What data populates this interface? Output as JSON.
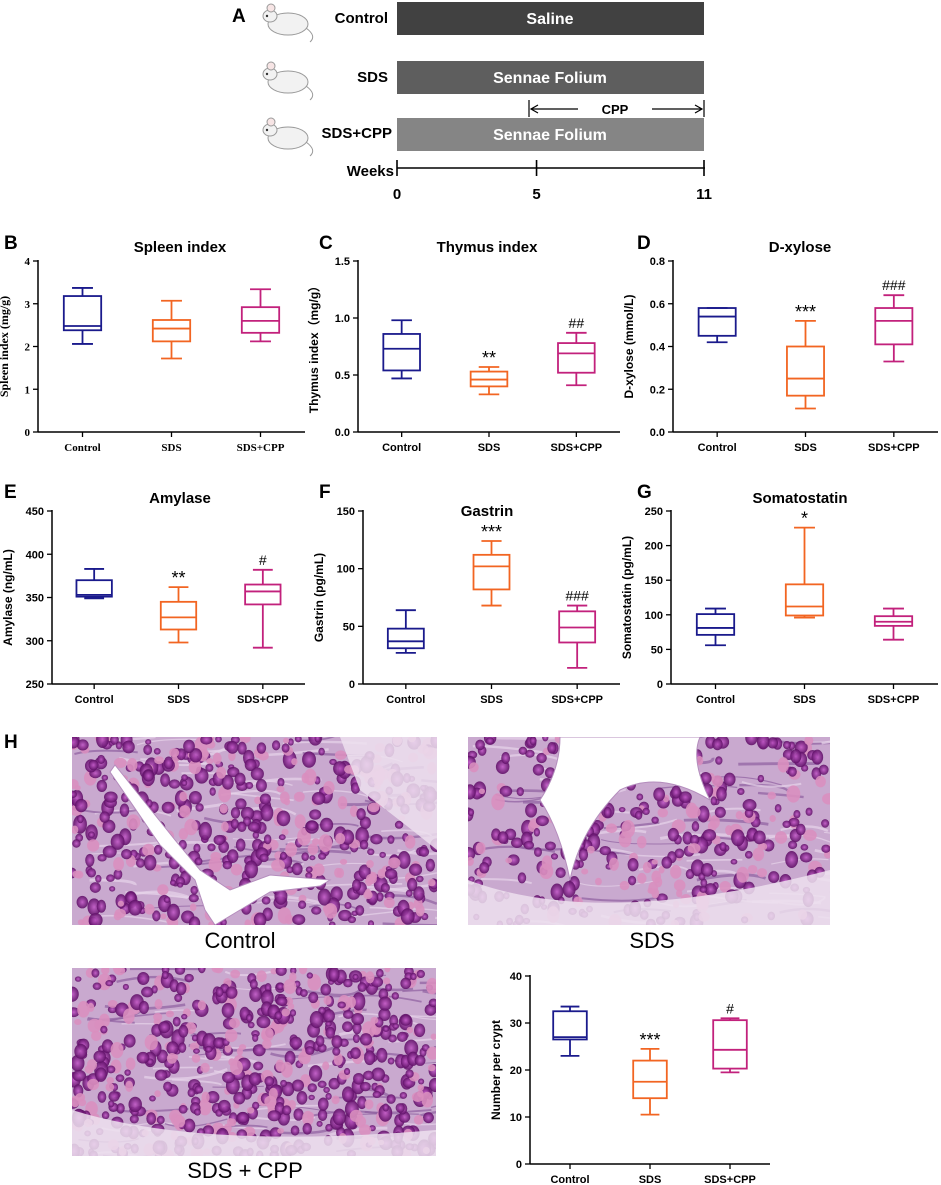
{
  "panel_a": {
    "letter": "A",
    "groups": [
      {
        "label": "Control",
        "bar_text": "Saline",
        "bar_color": "#414141",
        "icon": "mouse-icon"
      },
      {
        "label": "SDS",
        "bar_text": "Sennae Folium",
        "bar_color": "#5e5e5e",
        "icon": "mouse-icon"
      },
      {
        "label": "SDS+CPP",
        "bar_text": "Sennae Folium",
        "bar_color": "#858585",
        "icon": "mouse-icon"
      }
    ],
    "cpp_label": "CPP",
    "cpp_start_week": 5,
    "cpp_end_week": 11,
    "axis_label": "Weeks",
    "ticks": [
      0,
      5,
      11
    ]
  },
  "colors": {
    "Control": "#1a1a8c",
    "SDS": "#f26522",
    "SDS+CPP": "#c2217c"
  },
  "chart_data": [
    {
      "letter": "B",
      "type": "box",
      "title": "Spleen index",
      "ylabel": "Spleen index (mg/g)",
      "serif": true,
      "ylim": [
        0,
        4
      ],
      "yticks": [
        0,
        1,
        2,
        3,
        4
      ],
      "categories": [
        "Control",
        "SDS",
        "SDS+CPP"
      ],
      "boxes": [
        {
          "min": 2.06,
          "q1": 2.38,
          "median": 2.48,
          "q3": 3.18,
          "max": 3.37
        },
        {
          "min": 1.72,
          "q1": 2.12,
          "median": 2.42,
          "q3": 2.62,
          "max": 3.07
        },
        {
          "min": 2.12,
          "q1": 2.32,
          "median": 2.6,
          "q3": 2.92,
          "max": 3.34
        }
      ],
      "annotations": [
        "",
        "",
        ""
      ]
    },
    {
      "letter": "C",
      "type": "box",
      "title": "Thymus index",
      "ylabel": "Thymus index（mg/g）",
      "serif": false,
      "ylim": [
        0,
        1.5
      ],
      "yticks": [
        "0.0",
        "0.5",
        "1.0",
        "1.5"
      ],
      "categories": [
        "Control",
        "SDS",
        "SDS+CPP"
      ],
      "boxes": [
        {
          "min": 0.47,
          "q1": 0.54,
          "median": 0.73,
          "q3": 0.86,
          "max": 0.98
        },
        {
          "min": 0.33,
          "q1": 0.4,
          "median": 0.46,
          "q3": 0.53,
          "max": 0.57
        },
        {
          "min": 0.41,
          "q1": 0.52,
          "median": 0.69,
          "q3": 0.78,
          "max": 0.87
        }
      ],
      "annotations": [
        "",
        "**",
        "##"
      ]
    },
    {
      "letter": "D",
      "type": "box",
      "title": "D-xylose",
      "ylabel": "D-xylose (mmol/L)",
      "serif": false,
      "ylim": [
        0,
        0.8
      ],
      "yticks": [
        "0.0",
        "0.2",
        "0.4",
        "0.6",
        "0.8"
      ],
      "categories": [
        "Control",
        "SDS",
        "SDS+CPP"
      ],
      "boxes": [
        {
          "min": 0.42,
          "q1": 0.45,
          "median": 0.54,
          "q3": 0.58,
          "max": 0.58
        },
        {
          "min": 0.11,
          "q1": 0.17,
          "median": 0.25,
          "q3": 0.4,
          "max": 0.52
        },
        {
          "min": 0.33,
          "q1": 0.41,
          "median": 0.52,
          "q3": 0.58,
          "max": 0.64
        }
      ],
      "annotations": [
        "",
        "***",
        "###"
      ]
    },
    {
      "letter": "E",
      "type": "box",
      "title": "Amylase",
      "ylabel": "Amylase (ng/mL)",
      "serif": false,
      "ylim": [
        250,
        450
      ],
      "yticks": [
        250,
        300,
        350,
        400,
        450
      ],
      "categories": [
        "Control",
        "SDS",
        "SDS+CPP"
      ],
      "boxes": [
        {
          "min": 349,
          "q1": 351,
          "median": 353,
          "q3": 370,
          "max": 383
        },
        {
          "min": 298,
          "q1": 313,
          "median": 327,
          "q3": 345,
          "max": 362
        },
        {
          "min": 292,
          "q1": 342,
          "median": 357,
          "q3": 365,
          "max": 382
        }
      ],
      "annotations": [
        "",
        "**",
        "#"
      ]
    },
    {
      "letter": "F",
      "type": "box",
      "title": "Gastrin",
      "ylabel": "Gastrin (pg/mL)",
      "serif": false,
      "ylim": [
        0,
        150
      ],
      "yticks": [
        0,
        50,
        100,
        150
      ],
      "categories": [
        "Control",
        "SDS",
        "SDS+CPP"
      ],
      "boxes": [
        {
          "min": 27,
          "q1": 31,
          "median": 37,
          "q3": 48,
          "max": 64
        },
        {
          "min": 68,
          "q1": 82,
          "median": 102,
          "q3": 112,
          "max": 124
        },
        {
          "min": 14,
          "q1": 36,
          "median": 49,
          "q3": 63,
          "max": 68
        }
      ],
      "annotations": [
        "",
        "***",
        "###"
      ]
    },
    {
      "letter": "G",
      "type": "box",
      "title": "Somatostatin",
      "ylabel": "Somatostatin (pg/mL)",
      "serif": false,
      "ylim": [
        0,
        250
      ],
      "yticks": [
        0,
        50,
        100,
        150,
        200,
        250
      ],
      "categories": [
        "Control",
        "SDS",
        "SDS+CPP"
      ],
      "boxes": [
        {
          "min": 56,
          "q1": 71,
          "median": 81,
          "q3": 101,
          "max": 109
        },
        {
          "min": 96,
          "q1": 99,
          "median": 112,
          "q3": 144,
          "max": 226
        },
        {
          "min": 64,
          "q1": 84,
          "median": 90,
          "q3": 98,
          "max": 109
        }
      ],
      "annotations": [
        "",
        "*",
        ""
      ]
    },
    {
      "letter": "",
      "type": "box",
      "title": "",
      "ylabel": "Number per crypt",
      "serif": false,
      "ylim": [
        0,
        40
      ],
      "yticks": [
        0,
        10,
        20,
        30,
        40
      ],
      "categories": [
        "Control",
        "SDS",
        "SDS+CPP"
      ],
      "boxes": [
        {
          "min": 23,
          "q1": 26.5,
          "median": 27,
          "q3": 32.5,
          "max": 33.5
        },
        {
          "min": 10.5,
          "q1": 14,
          "median": 17.5,
          "q3": 22,
          "max": 24.5
        },
        {
          "min": 19.5,
          "q1": 20.3,
          "median": 24.3,
          "q3": 30.6,
          "max": 31
        }
      ],
      "annotations": [
        "",
        "***",
        "#"
      ]
    }
  ],
  "panel_h": {
    "letter": "H",
    "captions": [
      "Control",
      "SDS",
      "SDS + CPP"
    ]
  }
}
